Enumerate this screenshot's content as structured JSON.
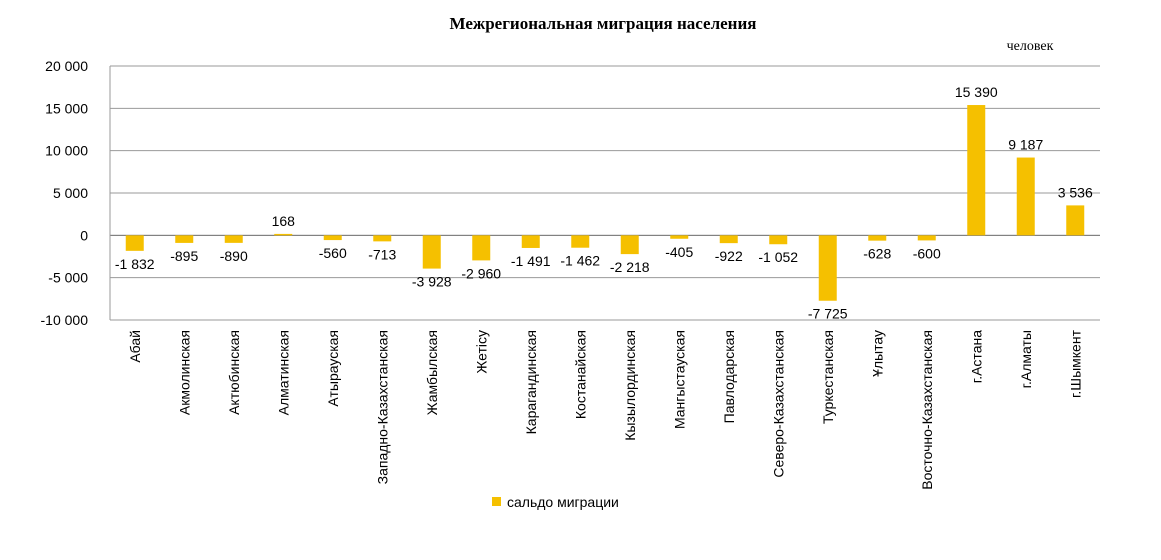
{
  "chart_data": {
    "type": "bar",
    "title": "Межрегиональная миграция населения",
    "unit": "человек",
    "categories": [
      "Абай",
      "Акмолинская",
      "Актюбинская",
      "Алматинская",
      "Атырауская",
      "Западно-Казахстанская",
      "Жамбылская",
      "Жетісу",
      "Карагандинская",
      "Костанайская",
      "Кызылординская",
      "Мангыстауская",
      "Павлодарская",
      "Северо-Казахстанская",
      "Туркестанская",
      "Ұлытау",
      "Восточно-Казахстанская",
      "г.Астана",
      "г.Алматы",
      "г.Шымкент"
    ],
    "series": [
      {
        "name": "сальдо миграции",
        "values": [
          -1832,
          -895,
          -890,
          168,
          -560,
          -713,
          -3928,
          -2960,
          -1491,
          -1462,
          -2218,
          -405,
          -922,
          -1052,
          -7725,
          -628,
          -600,
          15390,
          9187,
          3536
        ],
        "labels": [
          "-1 832",
          "-895",
          "-890",
          "168",
          "-560",
          "-713",
          "-3 928",
          "-2 960",
          "-1 491",
          "-1 462",
          "-2 218",
          "-405",
          "-922",
          "-1 052",
          "-7 725",
          "-628",
          "-600",
          "15 390",
          "9 187",
          "3 536"
        ]
      }
    ],
    "ylim": [
      -10000,
      20000
    ],
    "yticks": [
      20000,
      15000,
      10000,
      5000,
      0,
      -5000,
      -10000
    ],
    "ytick_labels": [
      "20 000",
      "15 000",
      "10 000",
      "5 000",
      "0",
      "-5 000",
      "-10 000"
    ],
    "grid": true,
    "legend_position": "bottom",
    "bar_color": "#F5C000"
  }
}
